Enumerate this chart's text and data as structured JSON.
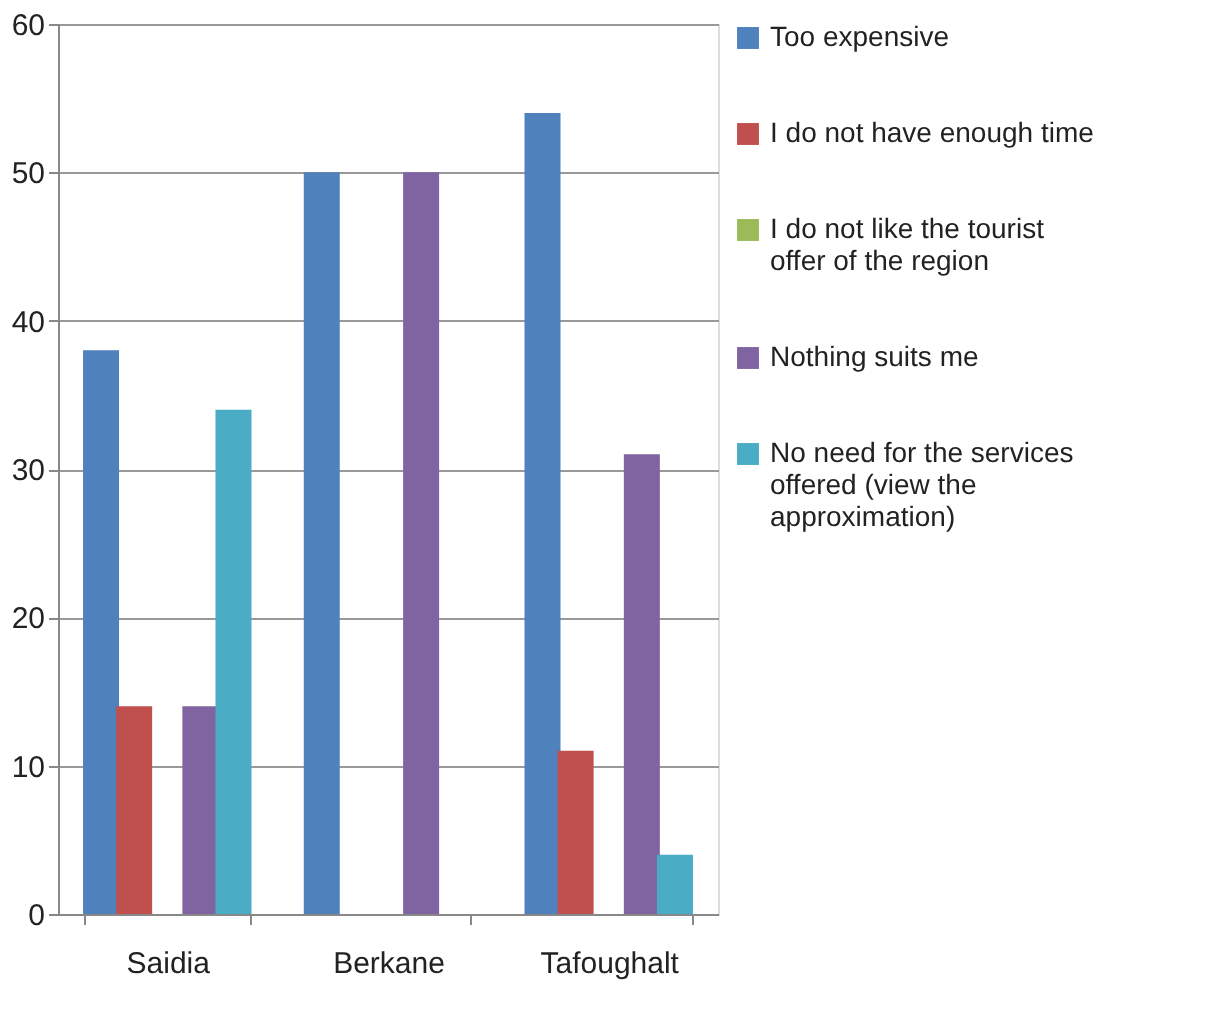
{
  "chart_data": {
    "type": "bar",
    "categories": [
      "Saidia",
      "Berkane",
      "Tafoughalt"
    ],
    "series": [
      {
        "name": "Too expensive",
        "color": "#4f81bd",
        "values": [
          38,
          50,
          54
        ]
      },
      {
        "name": "I do not have enough time",
        "color": "#c0504d",
        "values": [
          14,
          0,
          11
        ]
      },
      {
        "name": "I do not like the tourist offer of the region",
        "color": "#9bbb59",
        "values": [
          0,
          0,
          0
        ]
      },
      {
        "name": "Nothing suits me",
        "color": "#8064a2",
        "values": [
          14,
          50,
          31
        ]
      },
      {
        "name": "No need for the services offered (view the approximation)",
        "color": "#4bacc6",
        "values": [
          34,
          0,
          4
        ]
      }
    ],
    "ylim": [
      0,
      60
    ],
    "yticks": [
      0,
      10,
      20,
      30,
      40,
      50,
      60
    ],
    "grid": "y",
    "legend": "right"
  }
}
